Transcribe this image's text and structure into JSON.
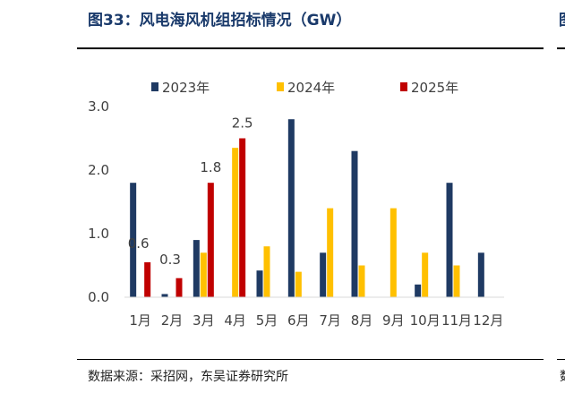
{
  "title": "图33：风电海风机组招标情况（GW）",
  "right_title_fragment": "图",
  "source": "数据来源：采招网，东吴证券研究所",
  "right_source_fragment": "数",
  "chart_data": {
    "type": "bar",
    "title": "",
    "xlabel": "",
    "ylabel": "",
    "categories": [
      "1月",
      "2月",
      "3月",
      "4月",
      "5月",
      "6月",
      "7月",
      "8月",
      "9月",
      "10月",
      "11月",
      "12月"
    ],
    "ylim": [
      0,
      3.0
    ],
    "yticks": [
      "0.0",
      "1.0",
      "2.0",
      "3.0"
    ],
    "grid": false,
    "legend": "top",
    "series": [
      {
        "name": "2023年",
        "color": "#1f3a63",
        "values": [
          1.8,
          0.05,
          0.9,
          null,
          0.42,
          2.8,
          0.7,
          2.3,
          null,
          0.2,
          1.8,
          0.7
        ]
      },
      {
        "name": "2024年",
        "color": "#ffc000",
        "values": [
          null,
          null,
          0.7,
          2.35,
          0.8,
          0.4,
          1.4,
          0.5,
          1.4,
          0.7,
          0.5,
          null
        ]
      },
      {
        "name": "2025年",
        "color": "#c00000",
        "values": [
          0.55,
          0.3,
          1.8,
          2.5,
          null,
          null,
          null,
          null,
          null,
          null,
          null,
          null
        ],
        "labels": [
          "0.6",
          "0.3",
          "1.8",
          "2.5",
          null,
          null,
          null,
          null,
          null,
          null,
          null,
          null
        ]
      }
    ]
  }
}
